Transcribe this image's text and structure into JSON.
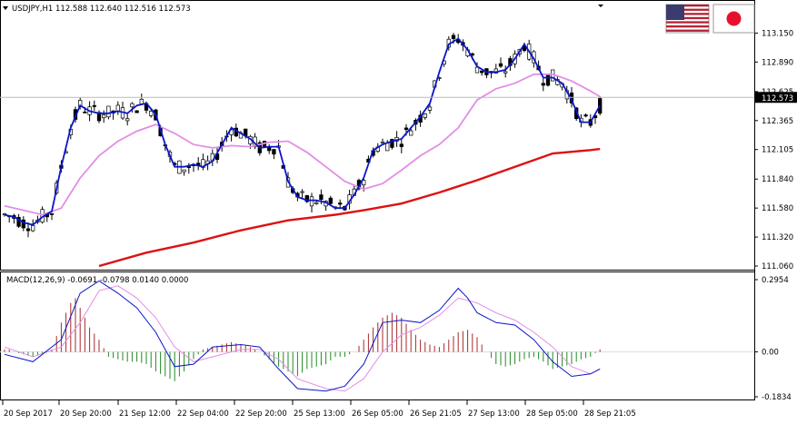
{
  "header": {
    "symbol_line": "USDJPY,H1  112.588 112.640 112.516 112.573",
    "macd_line": "MACD(12,26,9) -0.0691 -0.0798 0.0140 0.0000"
  },
  "flags": {
    "left": "us-flag-icon",
    "right": "japan-flag-icon"
  },
  "colors": {
    "bull_candle": "#ffffff",
    "bear_candle": "#000000",
    "ma_fast": "#0a16c8",
    "ma_mid": "#e28ee6",
    "ma_slow": "#dd1111",
    "hist_pos": "#a52a2a",
    "hist_neg": "#228b22",
    "macd_line": "#0a16c8",
    "signal_line": "#e28ee6"
  },
  "chart_data": [
    {
      "type": "candlestick",
      "title": "USDJPY,H1",
      "ylim": [
        111.06,
        113.3
      ],
      "yticks": [
        "113.150",
        "112.890",
        "112.625",
        "112.365",
        "112.105",
        "111.840",
        "111.580",
        "111.320",
        "111.060"
      ],
      "current_price": "112.573",
      "xticks": [
        "20 Sep 2017",
        "20 Sep 20:00",
        "21 Sep 12:00",
        "22 Sep 04:00",
        "22 Sep 20:00",
        "25 Sep 13:00",
        "26 Sep 05:00",
        "26 Sep 21:05",
        "27 Sep 13:00",
        "28 Sep 05:00",
        "28 Sep 21:05"
      ],
      "series": [
        {
          "kind": "ma_fast",
          "values": [
            [
              0,
              111.52
            ],
            [
              2,
              111.5
            ],
            [
              4,
              111.45
            ],
            [
              6,
              111.43
            ],
            [
              8,
              111.5
            ],
            [
              10,
              111.55
            ],
            [
              12,
              111.95
            ],
            [
              14,
              112.3
            ],
            [
              16,
              112.5
            ],
            [
              18,
              112.45
            ],
            [
              20,
              112.43
            ],
            [
              22,
              112.43
            ],
            [
              24,
              112.45
            ],
            [
              26,
              112.43
            ],
            [
              28,
              112.5
            ],
            [
              30,
              112.52
            ],
            [
              32,
              112.42
            ],
            [
              34,
              112.15
            ],
            [
              36,
              111.95
            ],
            [
              38,
              111.95
            ],
            [
              40,
              111.97
            ],
            [
              42,
              111.95
            ],
            [
              44,
              112.0
            ],
            [
              46,
              112.15
            ],
            [
              48,
              112.3
            ],
            [
              50,
              112.25
            ],
            [
              52,
              112.2
            ],
            [
              54,
              112.12
            ],
            [
              56,
              112.13
            ],
            [
              58,
              112.13
            ],
            [
              60,
              111.82
            ],
            [
              62,
              111.68
            ],
            [
              64,
              111.65
            ],
            [
              66,
              111.65
            ],
            [
              68,
              111.63
            ],
            [
              70,
              111.58
            ],
            [
              72,
              111.58
            ],
            [
              74,
              111.7
            ],
            [
              76,
              111.85
            ],
            [
              78,
              112.1
            ],
            [
              80,
              112.15
            ],
            [
              82,
              112.18
            ],
            [
              84,
              112.2
            ],
            [
              86,
              112.3
            ],
            [
              88,
              112.4
            ],
            [
              90,
              112.52
            ],
            [
              92,
              112.8
            ],
            [
              94,
              113.05
            ],
            [
              96,
              113.1
            ],
            [
              98,
              113.0
            ],
            [
              100,
              112.85
            ],
            [
              102,
              112.8
            ],
            [
              104,
              112.8
            ],
            [
              106,
              112.82
            ],
            [
              108,
              112.92
            ],
            [
              110,
              113.05
            ],
            [
              112,
              112.92
            ],
            [
              114,
              112.75
            ],
            [
              116,
              112.75
            ],
            [
              118,
              112.7
            ],
            [
              120,
              112.55
            ],
            [
              122,
              112.35
            ],
            [
              124,
              112.35
            ],
            [
              126,
              112.5
            ]
          ]
        },
        {
          "kind": "ma_mid",
          "values": [
            [
              0,
              111.6
            ],
            [
              4,
              111.56
            ],
            [
              8,
              111.52
            ],
            [
              12,
              111.58
            ],
            [
              16,
              111.85
            ],
            [
              20,
              112.05
            ],
            [
              24,
              112.18
            ],
            [
              28,
              112.27
            ],
            [
              32,
              112.33
            ],
            [
              36,
              112.25
            ],
            [
              40,
              112.15
            ],
            [
              44,
              112.12
            ],
            [
              48,
              112.14
            ],
            [
              52,
              112.13
            ],
            [
              56,
              112.17
            ],
            [
              60,
              112.18
            ],
            [
              64,
              112.08
            ],
            [
              68,
              111.95
            ],
            [
              72,
              111.82
            ],
            [
              76,
              111.75
            ],
            [
              80,
              111.8
            ],
            [
              84,
              111.92
            ],
            [
              88,
              112.05
            ],
            [
              92,
              112.15
            ],
            [
              96,
              112.3
            ],
            [
              100,
              112.55
            ],
            [
              104,
              112.65
            ],
            [
              108,
              112.7
            ],
            [
              112,
              112.78
            ],
            [
              116,
              112.78
            ],
            [
              120,
              112.72
            ],
            [
              124,
              112.63
            ],
            [
              126,
              112.58
            ]
          ]
        },
        {
          "kind": "ma_slow",
          "values": [
            [
              20,
              111.06
            ],
            [
              30,
              111.18
            ],
            [
              40,
              111.27
            ],
            [
              50,
              111.38
            ],
            [
              60,
              111.47
            ],
            [
              70,
              111.52
            ],
            [
              76,
              111.56
            ],
            [
              84,
              111.62
            ],
            [
              92,
              111.72
            ],
            [
              100,
              111.83
            ],
            [
              108,
              111.95
            ],
            [
              116,
              112.07
            ],
            [
              124,
              112.1
            ],
            [
              126,
              112.11
            ]
          ]
        }
      ]
    },
    {
      "type": "bar",
      "title": "MACD(12,26,9)",
      "ylim": [
        -0.1834,
        0.2954
      ],
      "yticks": [
        "0.2954",
        "0.00",
        "-0.1834"
      ],
      "histogram": [
        [
          2,
          0.0
        ],
        [
          6,
          -0.02
        ],
        [
          8,
          -0.01
        ],
        [
          10,
          0.01
        ],
        [
          12,
          0.12
        ],
        [
          14,
          0.2
        ],
        [
          15,
          0.22
        ],
        [
          16,
          0.18
        ],
        [
          18,
          0.1
        ],
        [
          20,
          0.05
        ],
        [
          22,
          -0.02
        ],
        [
          24,
          -0.03
        ],
        [
          26,
          -0.04
        ],
        [
          28,
          -0.04
        ],
        [
          30,
          -0.05
        ],
        [
          32,
          -0.08
        ],
        [
          34,
          -0.1
        ],
        [
          36,
          -0.12
        ],
        [
          38,
          -0.08
        ],
        [
          40,
          -0.03
        ],
        [
          42,
          0.01
        ],
        [
          44,
          0.02
        ],
        [
          46,
          0.03
        ],
        [
          48,
          0.04
        ],
        [
          50,
          0.03
        ],
        [
          52,
          0.02
        ],
        [
          54,
          0.0
        ],
        [
          56,
          -0.03
        ],
        [
          58,
          -0.06
        ],
        [
          60,
          -0.08
        ],
        [
          62,
          -0.1
        ],
        [
          64,
          -0.07
        ],
        [
          66,
          -0.06
        ],
        [
          68,
          -0.05
        ],
        [
          70,
          -0.02
        ],
        [
          72,
          -0.02
        ],
        [
          74,
          0.0
        ],
        [
          76,
          0.05
        ],
        [
          78,
          0.1
        ],
        [
          80,
          0.14
        ],
        [
          82,
          0.16
        ],
        [
          84,
          0.14
        ],
        [
          86,
          0.09
        ],
        [
          88,
          0.05
        ],
        [
          90,
          0.03
        ],
        [
          92,
          0.02
        ],
        [
          94,
          0.05
        ],
        [
          96,
          0.08
        ],
        [
          98,
          0.09
        ],
        [
          100,
          0.06
        ],
        [
          102,
          0.0
        ],
        [
          104,
          -0.05
        ],
        [
          106,
          -0.06
        ],
        [
          108,
          -0.05
        ],
        [
          110,
          -0.03
        ],
        [
          112,
          -0.02
        ],
        [
          114,
          -0.04
        ],
        [
          116,
          -0.07
        ],
        [
          118,
          -0.06
        ],
        [
          120,
          -0.05
        ],
        [
          122,
          -0.03
        ],
        [
          124,
          -0.02
        ],
        [
          126,
          0.01
        ]
      ],
      "macd": [
        [
          0,
          -0.01
        ],
        [
          6,
          -0.04
        ],
        [
          12,
          0.05
        ],
        [
          16,
          0.24
        ],
        [
          20,
          0.29
        ],
        [
          24,
          0.24
        ],
        [
          28,
          0.18
        ],
        [
          32,
          0.08
        ],
        [
          36,
          -0.06
        ],
        [
          40,
          -0.05
        ],
        [
          44,
          0.02
        ],
        [
          50,
          0.03
        ],
        [
          54,
          0.02
        ],
        [
          58,
          -0.07
        ],
        [
          62,
          -0.15
        ],
        [
          68,
          -0.16
        ],
        [
          72,
          -0.14
        ],
        [
          76,
          -0.05
        ],
        [
          80,
          0.12
        ],
        [
          84,
          0.13
        ],
        [
          88,
          0.12
        ],
        [
          92,
          0.17
        ],
        [
          96,
          0.26
        ],
        [
          98,
          0.22
        ],
        [
          100,
          0.16
        ],
        [
          104,
          0.12
        ],
        [
          108,
          0.11
        ],
        [
          112,
          0.05
        ],
        [
          116,
          -0.04
        ],
        [
          120,
          -0.1
        ],
        [
          124,
          -0.09
        ],
        [
          126,
          -0.07
        ]
      ],
      "signal": [
        [
          0,
          0.02
        ],
        [
          6,
          -0.02
        ],
        [
          12,
          0.02
        ],
        [
          16,
          0.12
        ],
        [
          20,
          0.25
        ],
        [
          24,
          0.27
        ],
        [
          28,
          0.22
        ],
        [
          32,
          0.14
        ],
        [
          36,
          0.02
        ],
        [
          40,
          -0.04
        ],
        [
          44,
          -0.02
        ],
        [
          50,
          0.01
        ],
        [
          54,
          0.01
        ],
        [
          58,
          -0.03
        ],
        [
          62,
          -0.11
        ],
        [
          68,
          -0.15
        ],
        [
          72,
          -0.16
        ],
        [
          76,
          -0.11
        ],
        [
          80,
          0.0
        ],
        [
          84,
          0.07
        ],
        [
          88,
          0.1
        ],
        [
          92,
          0.15
        ],
        [
          96,
          0.22
        ],
        [
          100,
          0.2
        ],
        [
          104,
          0.16
        ],
        [
          108,
          0.13
        ],
        [
          112,
          0.08
        ],
        [
          116,
          0.02
        ],
        [
          120,
          -0.06
        ],
        [
          124,
          -0.09
        ],
        [
          126,
          -0.07
        ]
      ]
    }
  ]
}
